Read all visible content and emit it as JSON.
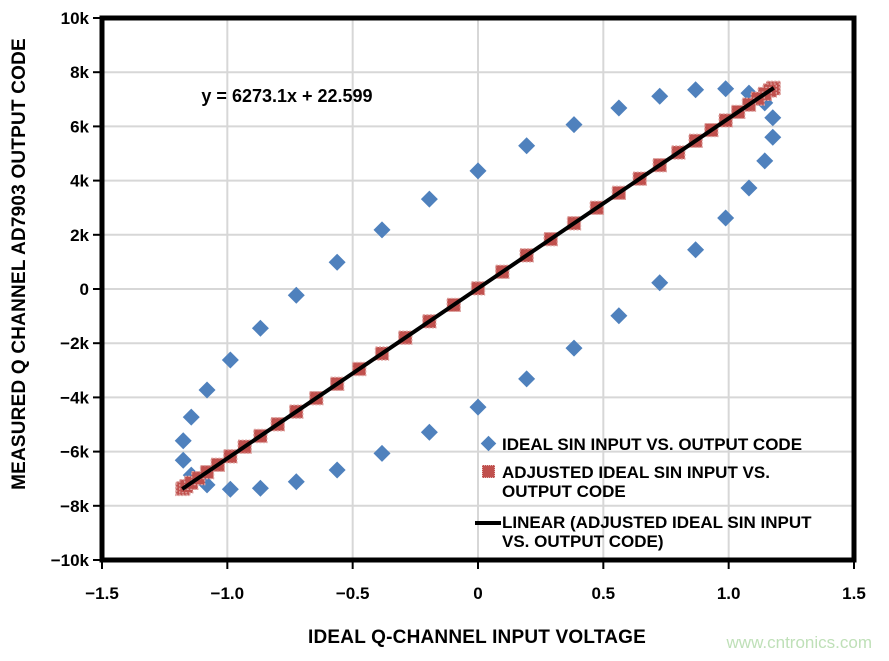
{
  "watermark": "www.cntronics.com",
  "chart_data": {
    "type": "scatter",
    "equation_annotation": "y = 6273.1x + 22.599",
    "xlabel": "IDEAL Q-CHANNEL INPUT VOLTAGE",
    "ylabel": "MEASURED Q CHANNEL AD7903 OUTPUT CODE",
    "xlim": [
      -1.5,
      1.5
    ],
    "ylim": [
      -10000,
      10000
    ],
    "grid": true,
    "x_tick_values": [
      -1.5,
      -1.0,
      -0.5,
      0,
      0.5,
      1.0,
      1.5
    ],
    "x_tick_labels": [
      "−1.5",
      "−1.0",
      "−0.5",
      "0",
      "0.5",
      "1.0",
      "1.5"
    ],
    "y_tick_values": [
      10000,
      8000,
      6000,
      4000,
      2000,
      0,
      -2000,
      -4000,
      -6000,
      -8000,
      -10000
    ],
    "y_tick_labels": [
      "10k",
      "8k",
      "6k",
      "4k",
      "2k",
      "0",
      "−2k",
      "−4k",
      "−6k",
      "−8k",
      "−10k"
    ],
    "series": [
      {
        "name": "IDEAL SIN INPUT VS. OUTPUT CODE",
        "marker": "diamond",
        "color": "#4f81bd",
        "points": [
          [
            0.0,
            4360
          ],
          [
            0.194,
            5284
          ],
          [
            0.383,
            6065
          ],
          [
            0.562,
            6680
          ],
          [
            0.725,
            7113
          ],
          [
            0.868,
            7352
          ],
          [
            0.988,
            7390
          ],
          [
            1.081,
            7227
          ],
          [
            1.144,
            6867
          ],
          [
            1.176,
            6319
          ],
          [
            1.176,
            5599
          ],
          [
            1.144,
            4726
          ],
          [
            1.081,
            3725
          ],
          [
            0.988,
            2621
          ],
          [
            0.868,
            1447
          ],
          [
            0.725,
            232
          ],
          [
            0.562,
            -988
          ],
          [
            0.383,
            -2182
          ],
          [
            0.194,
            -3316
          ],
          [
            0.0,
            -4360
          ],
          [
            -0.194,
            -5284
          ],
          [
            -0.383,
            -6065
          ],
          [
            -0.562,
            -6680
          ],
          [
            -0.725,
            -7113
          ],
          [
            -0.868,
            -7352
          ],
          [
            -0.988,
            -7390
          ],
          [
            -1.081,
            -7227
          ],
          [
            -1.144,
            -6867
          ],
          [
            -1.176,
            -6319
          ],
          [
            -1.176,
            -5599
          ],
          [
            -1.144,
            -4726
          ],
          [
            -1.081,
            -3725
          ],
          [
            -0.988,
            -2621
          ],
          [
            -0.868,
            -1447
          ],
          [
            -0.725,
            -232
          ],
          [
            -0.562,
            988
          ],
          [
            -0.383,
            2182
          ],
          [
            -0.194,
            3316
          ]
        ]
      },
      {
        "name": "ADJUSTED IDEAL SIN INPUT VS. OUTPUT CODE",
        "marker": "square",
        "color": "#c0504d",
        "border_color": "#dda29f",
        "points": [
          [
            0.0,
            23
          ],
          [
            0.097,
            634
          ],
          [
            0.194,
            1241
          ],
          [
            0.29,
            1840
          ],
          [
            0.383,
            2426
          ],
          [
            0.474,
            2996
          ],
          [
            0.562,
            3546
          ],
          [
            0.645,
            4071
          ],
          [
            0.725,
            4569
          ],
          [
            0.799,
            5036
          ],
          [
            0.868,
            5468
          ],
          [
            0.931,
            5864
          ],
          [
            0.988,
            6220
          ],
          [
            1.038,
            6533
          ],
          [
            1.081,
            6801
          ],
          [
            1.116,
            7024
          ],
          [
            1.144,
            7198
          ],
          [
            1.164,
            7324
          ],
          [
            1.176,
            7400
          ],
          [
            1.18,
            7425
          ],
          [
            1.176,
            7400
          ],
          [
            1.164,
            7324
          ],
          [
            1.144,
            7198
          ],
          [
            1.116,
            7024
          ],
          [
            1.081,
            6801
          ],
          [
            1.038,
            6533
          ],
          [
            0.988,
            6220
          ],
          [
            0.931,
            5864
          ],
          [
            0.868,
            5468
          ],
          [
            0.799,
            5036
          ],
          [
            0.725,
            4569
          ],
          [
            0.645,
            4071
          ],
          [
            0.562,
            3546
          ],
          [
            0.474,
            2996
          ],
          [
            0.383,
            2426
          ],
          [
            0.29,
            1840
          ],
          [
            0.194,
            1241
          ],
          [
            0.097,
            634
          ],
          [
            0.0,
            23
          ],
          [
            -0.097,
            -588
          ],
          [
            -0.194,
            -1196
          ],
          [
            -0.29,
            -1795
          ],
          [
            -0.383,
            -2381
          ],
          [
            -0.474,
            -2951
          ],
          [
            -0.562,
            -3500
          ],
          [
            -0.645,
            -4026
          ],
          [
            -0.725,
            -4524
          ],
          [
            -0.799,
            -4991
          ],
          [
            -0.868,
            -5423
          ],
          [
            -0.931,
            -5819
          ],
          [
            -0.988,
            -6175
          ],
          [
            -1.038,
            -6488
          ],
          [
            -1.081,
            -6756
          ],
          [
            -1.116,
            -6979
          ],
          [
            -1.144,
            -7153
          ],
          [
            -1.164,
            -7279
          ],
          [
            -1.176,
            -7355
          ],
          [
            -1.18,
            -7380
          ],
          [
            -1.176,
            -7355
          ],
          [
            -1.164,
            -7279
          ],
          [
            -1.144,
            -7153
          ],
          [
            -1.116,
            -6979
          ],
          [
            -1.081,
            -6756
          ],
          [
            -1.038,
            -6488
          ],
          [
            -0.988,
            -6175
          ],
          [
            -0.931,
            -5819
          ],
          [
            -0.868,
            -5423
          ],
          [
            -0.799,
            -4991
          ],
          [
            -0.725,
            -4524
          ],
          [
            -0.645,
            -4026
          ],
          [
            -0.562,
            -3500
          ],
          [
            -0.474,
            -2951
          ],
          [
            -0.383,
            -2381
          ],
          [
            -0.29,
            -1795
          ],
          [
            -0.194,
            -1196
          ],
          [
            -0.097,
            -588
          ]
        ]
      },
      {
        "name": "LINEAR (ADJUSTED IDEAL SIN INPUT VS. OUTPUT CODE)",
        "marker": "line",
        "color": "#000000",
        "points": [
          [
            -1.18,
            -7380
          ],
          [
            1.18,
            7425
          ]
        ]
      }
    ],
    "legend": {
      "position": "inside-lower-right",
      "items": [
        {
          "marker": "diamond",
          "color": "#4f81bd",
          "lines": [
            "IDEAL SIN INPUT VS. OUTPUT CODE"
          ]
        },
        {
          "marker": "square",
          "color": "#c0504d",
          "lines": [
            "ADJUSTED IDEAL SIN INPUT VS.",
            "OUTPUT CODE"
          ]
        },
        {
          "marker": "line",
          "color": "#000000",
          "lines": [
            "LINEAR (ADJUSTED IDEAL SIN INPUT",
            "VS. OUTPUT CODE)"
          ]
        }
      ]
    }
  }
}
